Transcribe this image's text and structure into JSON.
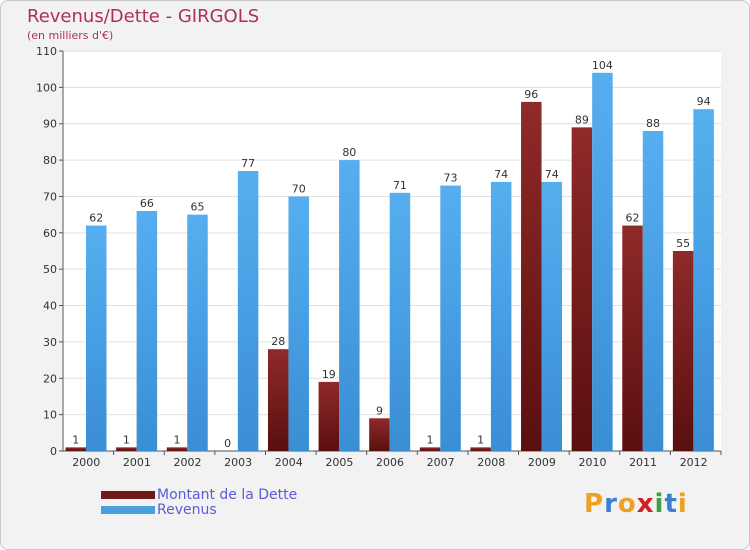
{
  "chart_data": {
    "type": "bar",
    "title": "Revenus/Dette - GIRGOLS",
    "subtitle": "(en milliers d'€)",
    "categories": [
      "2000",
      "2001",
      "2002",
      "2003",
      "2004",
      "2005",
      "2006",
      "2007",
      "2008",
      "2009",
      "2010",
      "2011",
      "2012"
    ],
    "series": [
      {
        "name": "Montant de la Dette",
        "color": "#6e1a1a",
        "values": [
          1,
          1,
          1,
          0,
          28,
          19,
          9,
          1,
          1,
          96,
          89,
          62,
          55
        ]
      },
      {
        "name": "Revenus",
        "color": "#4a9fe0",
        "values": [
          62,
          66,
          65,
          77,
          70,
          80,
          71,
          73,
          74,
          74,
          104,
          88,
          94
        ]
      }
    ],
    "yticks": [
      0,
      10,
      20,
      30,
      40,
      50,
      60,
      70,
      80,
      90,
      100,
      110
    ],
    "ylim": [
      0,
      110
    ],
    "grid": true
  },
  "branding": {
    "logo_letters": [
      "P",
      "r",
      "o",
      "x",
      "i",
      "t",
      "i"
    ],
    "logo_colors": [
      "#f0a020",
      "#3a7fd0",
      "#f0a020",
      "#d02020",
      "#3aa040",
      "#3a7fd0",
      "#f0a020"
    ]
  }
}
